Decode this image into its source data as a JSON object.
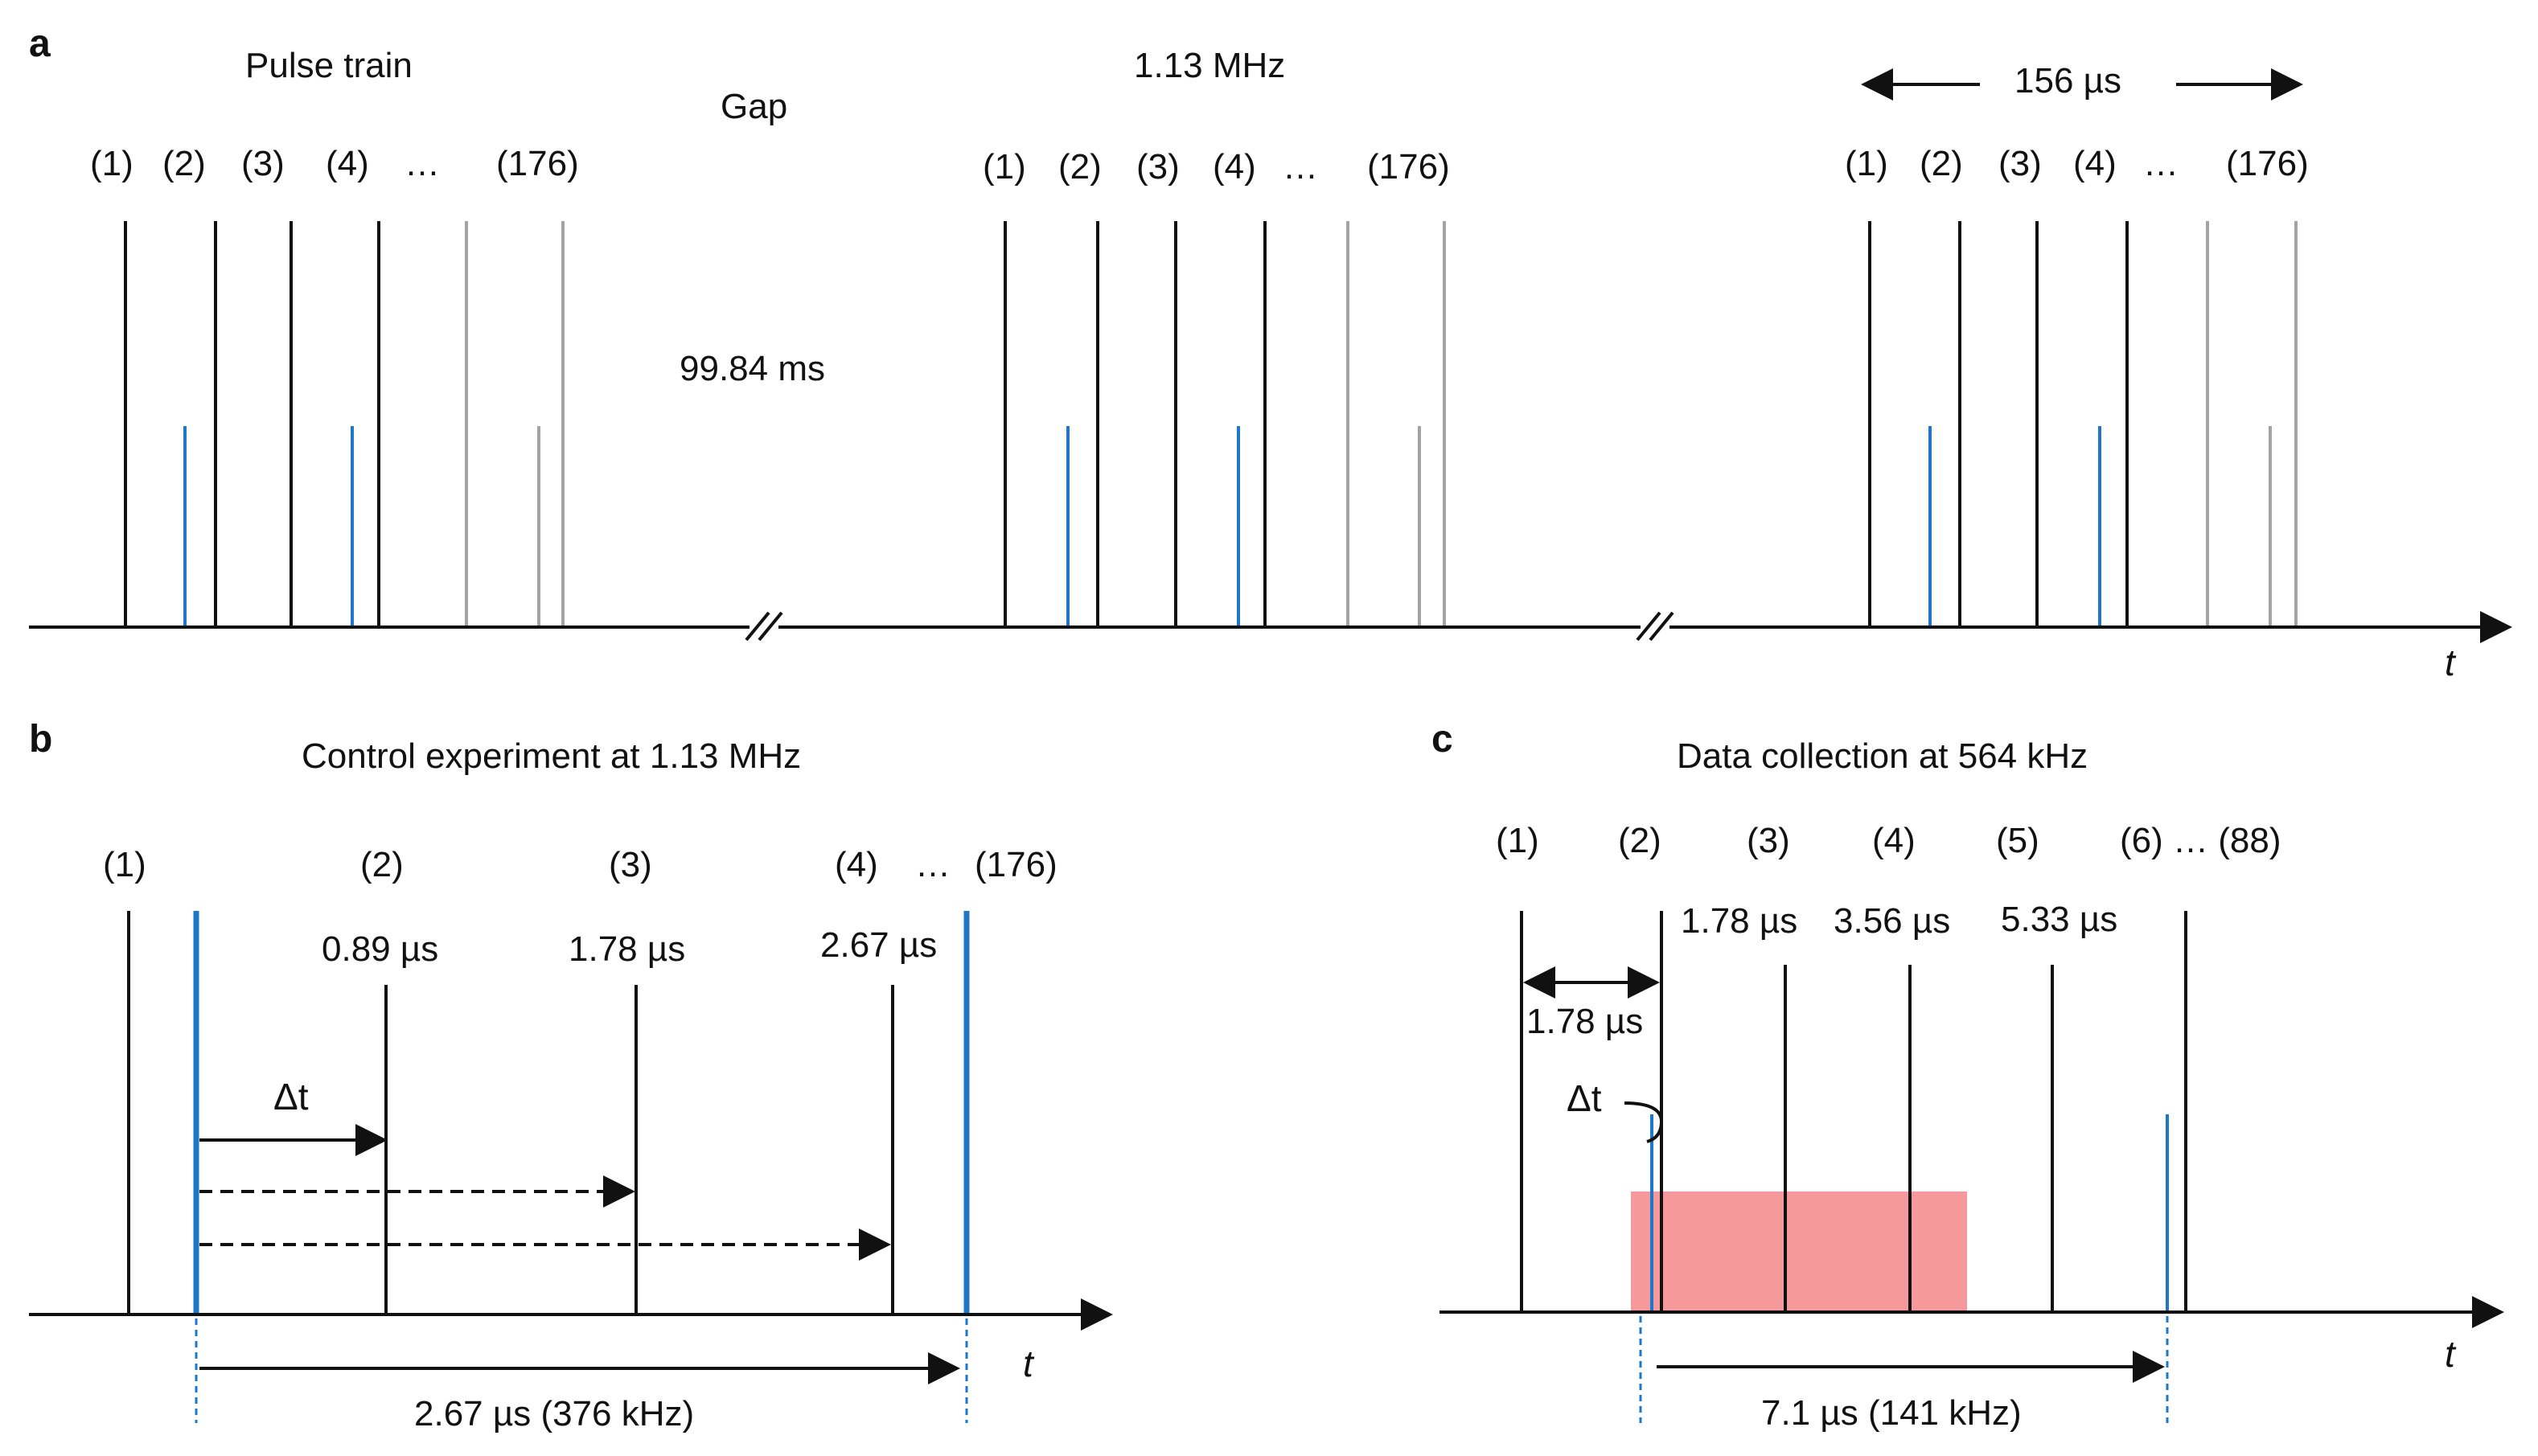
{
  "colors": {
    "black": "#111111",
    "blue": "#1f77c8",
    "gray": "#a3a3a3",
    "pink": "#f5999c"
  },
  "panel_a": {
    "letter": "a",
    "title_pulse_train": "Pulse train",
    "title_gap": "Gap",
    "gap_value": "99.84 ms",
    "frequency": "1.13 MHz",
    "span": "156 µs",
    "pulse_labels": [
      "(1)",
      "(2)",
      "(3)",
      "(4)",
      "…",
      "(176)"
    ],
    "axis_label": "t"
  },
  "panel_b": {
    "letter": "b",
    "title": "Control experiment at 1.13 MHz",
    "pulse_labels": [
      "(1)",
      "(2)",
      "(3)",
      "(4)",
      "…",
      "(176)"
    ],
    "delays": [
      "0.89 µs",
      "1.78 µs",
      "2.67 µs"
    ],
    "delta_t": "Δt",
    "period": "2.67 µs (376 kHz)",
    "axis_label": "t"
  },
  "panel_c": {
    "letter": "c",
    "title": "Data collection at 564 kHz",
    "pulse_labels": [
      "(1)",
      "(2)",
      "(3)",
      "(4)",
      "(5)",
      "(6) … (88)"
    ],
    "delays": [
      "1.78 µs",
      "3.56 µs",
      "5.33 µs"
    ],
    "spacing": "1.78 µs",
    "delta_t": "Δt",
    "period": "7.1 µs (141 kHz)",
    "axis_label": "t"
  }
}
